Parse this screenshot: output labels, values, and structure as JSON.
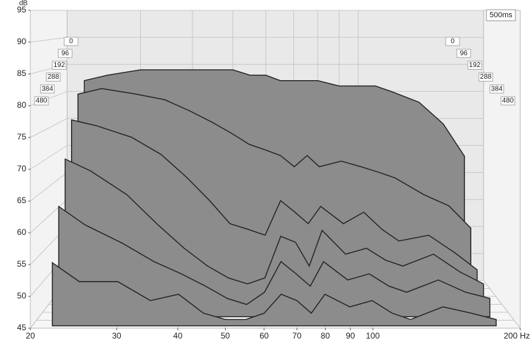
{
  "chart_data": {
    "type": "waterfall",
    "y_label": "dB",
    "time_range_label": "500ms",
    "x": [
      22,
      25,
      30,
      35,
      40,
      45,
      50,
      55,
      60,
      65,
      70,
      75,
      80,
      90,
      100,
      110,
      120,
      140,
      160,
      180
    ],
    "series": [
      {
        "name": "0",
        "color": "#8c8c8c",
        "values": [
          82,
          83,
          84,
          84,
          84,
          84,
          84,
          83,
          83,
          82,
          82,
          82,
          82,
          81,
          81,
          81,
          80,
          78,
          74,
          68
        ]
      },
      {
        "name": "96",
        "color": "#8c8c8c",
        "values": [
          80,
          81,
          80,
          79,
          77,
          75,
          73,
          71,
          70,
          69,
          67,
          69,
          67,
          68,
          67,
          66,
          65,
          62,
          60,
          56
        ]
      },
      {
        "name": "192",
        "color": "#8c8c8c",
        "values": [
          76,
          75,
          73,
          70,
          66,
          62,
          58,
          57,
          56,
          62,
          60,
          58,
          61,
          58,
          60,
          57,
          55,
          56,
          53,
          50
        ]
      },
      {
        "name": "288",
        "color": "#8c8c8c",
        "values": [
          70,
          68,
          64,
          59,
          55,
          52,
          50,
          49,
          50,
          57,
          56,
          52,
          58,
          54,
          55,
          53,
          52,
          54,
          51,
          49
        ]
      },
      {
        "name": "384",
        "color": "#8c8c8c",
        "values": [
          63,
          60,
          57,
          54,
          52,
          50,
          48,
          47,
          49,
          54,
          52,
          50,
          54,
          51,
          52,
          50,
          49,
          51,
          49,
          48
        ]
      },
      {
        "name": "480",
        "color": "#8c8c8c",
        "values": [
          55,
          52,
          52,
          49,
          50,
          47,
          46,
          46,
          47,
          50,
          49,
          47,
          50,
          48,
          49,
          47,
          46,
          48,
          47,
          46
        ]
      }
    ],
    "xlim": [
      20,
      200
    ],
    "ylim": [
      45,
      95
    ],
    "x_log": true,
    "xticks": [
      20,
      30,
      40,
      50,
      60,
      70,
      80,
      90,
      100,
      {
        "value": 200,
        "label": "200 Hz"
      }
    ],
    "yticks": [
      45,
      50,
      55,
      60,
      65,
      70,
      75,
      80,
      85,
      90,
      95
    ],
    "grid": true
  }
}
